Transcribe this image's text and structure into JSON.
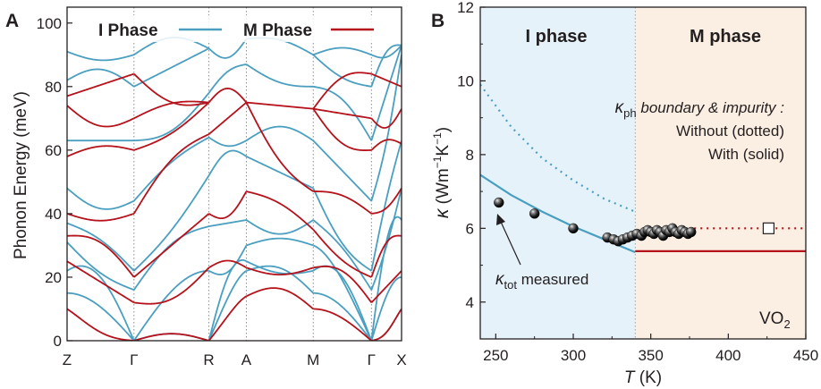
{
  "colors": {
    "i_phase": "#4a9fc0",
    "m_phase": "#b5121b",
    "i_region": "#e6f2fa",
    "m_region": "#fbeee2",
    "text": "#231f20"
  },
  "panels": {
    "a": {
      "letter": "A"
    },
    "b": {
      "letter": "B"
    }
  },
  "chart_data": [
    {
      "type": "line",
      "panel": "A",
      "ylabel": "Phonon Energy (meV)",
      "ylim": [
        0,
        105
      ],
      "yticks": [
        "0",
        "20",
        "40",
        "60",
        "80",
        "100"
      ],
      "xticks": [
        {
          "label": "Z",
          "pos": 0.0
        },
        {
          "label": "Γ",
          "pos": 0.2
        },
        {
          "label": "R",
          "pos": 0.424
        },
        {
          "label": "A",
          "pos": 0.536
        },
        {
          "label": "M",
          "pos": 0.736
        },
        {
          "label": "Γ",
          "pos": 0.91
        },
        {
          "label": "X",
          "pos": 1.0
        }
      ],
      "legend": [
        {
          "name": "I Phase",
          "color": "#4a9fc0"
        },
        {
          "name": "M Phase",
          "color": "#b5121b"
        }
      ],
      "grid": "dotted vertical lines at high-symmetry points",
      "series": [
        {
          "name": "I Phase",
          "kind": "phonon dispersion",
          "bands_at_points": {
            "Z": [
              0,
              15,
              22,
              31,
              37,
              48,
              63,
              82,
              91
            ],
            "Γ": [
              0,
              0,
              0,
              16,
              22,
              44,
              63,
              80,
              90
            ],
            "R": [
              0,
              0,
              22,
              36,
              52,
              64,
              78,
              92
            ],
            "A": [
              22,
              25,
              30,
              38,
              58,
              63,
              87,
              95
            ],
            "M": [
              15,
              22,
              30,
              38,
              48,
              63,
              80,
              90
            ],
            "X": [
              10,
              20,
              38,
              48,
              63,
              90,
              93
            ]
          }
        },
        {
          "name": "M Phase",
          "kind": "phonon dispersion",
          "bands_at_points": {
            "Z": [
              10,
              25,
              33,
              40,
              58,
              74,
              77
            ],
            "Γ": [
              0,
              12,
              20,
              40,
              60,
              70,
              84
            ],
            "R": [
              0,
              23,
              40,
              65,
              75
            ],
            "A": [
              14,
              23,
              47,
              75
            ],
            "M": [
              10,
              23,
              35,
              47,
              73
            ],
            "X": [
              10,
              22,
              33,
              48,
              62,
              73,
              80
            ]
          }
        }
      ]
    },
    {
      "type": "scatter",
      "panel": "B",
      "xlabel": "T (K)",
      "ylabel": "κ (Wm⁻¹K⁻¹)",
      "xlim": [
        240,
        450
      ],
      "ylim": [
        3,
        12
      ],
      "xticks": [
        "250",
        "300",
        "350",
        "400",
        "450"
      ],
      "yticks": [
        "4",
        "6",
        "8",
        "10",
        "12"
      ],
      "transition_T": 340,
      "regions": [
        {
          "name": "I phase",
          "x": [
            240,
            340
          ]
        },
        {
          "name": "M phase",
          "x": [
            340,
            450
          ]
        }
      ],
      "series": [
        {
          "name": "κtot measured",
          "style": "sphere markers",
          "x": [
            252,
            275,
            300,
            322,
            326,
            329,
            332,
            335,
            338,
            341,
            344,
            346,
            348,
            350,
            352,
            354,
            356,
            358,
            360,
            362,
            364,
            366,
            368,
            370,
            372,
            374,
            376
          ],
          "y": [
            6.7,
            6.4,
            6.0,
            5.75,
            5.7,
            5.65,
            5.7,
            5.75,
            5.8,
            5.85,
            5.8,
            5.9,
            5.95,
            5.9,
            5.85,
            5.95,
            5.9,
            5.8,
            5.95,
            5.9,
            6.0,
            5.9,
            5.85,
            5.95,
            5.9,
            5.85,
            5.9
          ]
        },
        {
          "name": "I phase κph without boundary & impurity (dotted)",
          "color": "#4a9fc0",
          "x": [
            240,
            260,
            280,
            300,
            320,
            340
          ],
          "y": [
            9.9,
            8.75,
            7.9,
            7.3,
            6.8,
            6.45
          ]
        },
        {
          "name": "I phase κph with boundary & impurity (solid)",
          "color": "#4a9fc0",
          "x": [
            240,
            260,
            280,
            300,
            320,
            340
          ],
          "y": [
            7.45,
            6.9,
            6.45,
            6.05,
            5.7,
            5.35
          ]
        },
        {
          "name": "M phase without (dotted)",
          "color": "#b5121b",
          "x": [
            378,
            450
          ],
          "y": [
            6.0,
            6.0
          ]
        },
        {
          "name": "M phase with (solid)",
          "color": "#b5121b",
          "x": [
            340,
            450
          ],
          "y": [
            5.38,
            5.38
          ]
        },
        {
          "name": "open square marker",
          "x": [
            426
          ],
          "y": [
            6.0
          ]
        }
      ],
      "labels": {
        "i_region": "I phase",
        "m_region": "M phase",
        "legend_line1_symbol": "κ",
        "legend_line1_sub": "ph",
        "legend_line1_rest": " boundary & impurity :",
        "legend_line2": "Without (dotted)",
        "legend_line3": "With (solid)",
        "measured_symbol": "κ",
        "measured_sub": "tot",
        "measured_rest": " measured",
        "material": "VO",
        "material_sub": "2",
        "ylabel_kappa": "κ",
        "ylabel_units_a": " (Wm",
        "ylabel_exp1": "−1",
        "ylabel_units_b": "K",
        "ylabel_exp2": "−1",
        "ylabel_close": ")",
        "xlabel_T": "T",
        "xlabel_rest": " (K)"
      }
    }
  ]
}
